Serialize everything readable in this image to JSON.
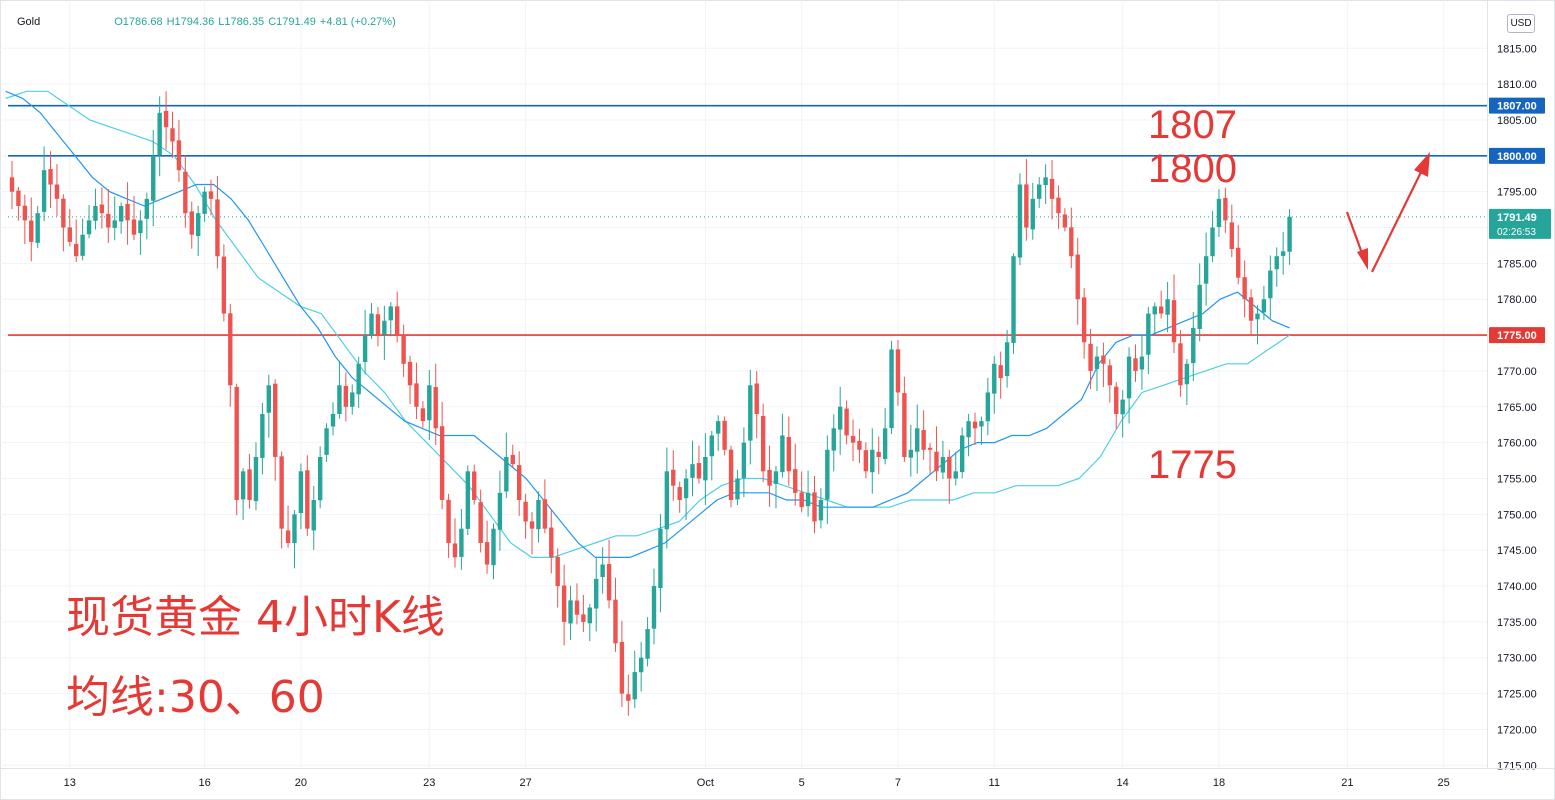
{
  "symbol": "Gold",
  "ohlc": {
    "open": "O1786.68",
    "high": "H1794.36",
    "low": "L1786.35",
    "close": "C1791.49",
    "change": "+4.81 (+0.27%)"
  },
  "currency": "USD",
  "last_price": {
    "price": "1791.49",
    "countdown": "02:26:53"
  },
  "horizontal_levels": [
    {
      "label": "1807.00",
      "value": 1807,
      "color": "#1565c0"
    },
    {
      "label": "1800.00",
      "value": 1800,
      "color": "#1565c0"
    },
    {
      "label": "1775.00",
      "value": 1775,
      "color": "#e53935"
    }
  ],
  "annotations": {
    "level_1807": "1807",
    "level_1800": "1800",
    "level_1775": "1775",
    "title_cn": "现货黄金 4小时K线",
    "ma_cn": "均线:30、60"
  },
  "colors": {
    "up": "#26a69a",
    "down": "#ef5350",
    "ma30": "#2196f3",
    "ma60": "#4dd0e1",
    "blue_line": "#1565c0",
    "red_line": "#e53935"
  },
  "chart_data": {
    "type": "candlestick",
    "title": "",
    "ylim": [
      1712,
      1819
    ],
    "y_ticks": [
      1815,
      1810,
      1805,
      1800,
      1795,
      1790,
      1785,
      1780,
      1775,
      1770,
      1765,
      1760,
      1755,
      1750,
      1745,
      1740,
      1735,
      1730,
      1725,
      1720,
      1715
    ],
    "x_ticks": [
      {
        "label": "13",
        "index": 9
      },
      {
        "label": "16",
        "index": 30
      },
      {
        "label": "20",
        "index": 45
      },
      {
        "label": "23",
        "index": 65
      },
      {
        "label": "27",
        "index": 80
      },
      {
        "label": "Oct",
        "index": 108
      },
      {
        "label": "5",
        "index": 123
      },
      {
        "label": "7",
        "index": 138
      },
      {
        "label": "11",
        "index": 153
      },
      {
        "label": "14",
        "index": 173
      },
      {
        "label": "18",
        "index": 188
      },
      {
        "label": "21",
        "index": 208
      },
      {
        "label": "25",
        "index": 223
      }
    ],
    "x_range": [
      -1,
      240
    ],
    "close_series": [
      1795,
      1793,
      1791,
      1788,
      1792,
      1798,
      1796,
      1794,
      1790,
      1788,
      1786,
      1789,
      1791,
      1793,
      1792,
      1790,
      1791,
      1793,
      1791,
      1789,
      1791,
      1794,
      1800,
      1806,
      1804,
      1802,
      1798,
      1792,
      1789,
      1792,
      1795,
      1794,
      1786,
      1778,
      1768,
      1752,
      1756,
      1752,
      1758,
      1764,
      1768,
      1758,
      1748,
      1746,
      1750,
      1756,
      1748,
      1752,
      1758,
      1762,
      1764,
      1768,
      1765,
      1767,
      1771,
      1775,
      1778,
      1775,
      1777,
      1779,
      1775,
      1771,
      1768,
      1765,
      1763,
      1768,
      1762,
      1752,
      1746,
      1744,
      1748,
      1756,
      1752,
      1746,
      1743,
      1748,
      1753,
      1758,
      1757,
      1752,
      1749,
      1748,
      1752,
      1748,
      1744,
      1740,
      1735,
      1738,
      1736,
      1735,
      1737,
      1741,
      1743,
      1738,
      1732,
      1725,
      1724,
      1728,
      1730,
      1734,
      1740,
      1748,
      1756,
      1754,
      1752,
      1755,
      1757,
      1755,
      1758,
      1761,
      1763,
      1759,
      1752,
      1755,
      1760,
      1768,
      1764,
      1756,
      1754,
      1756,
      1761,
      1756,
      1753,
      1751,
      1753,
      1749,
      1752,
      1759,
      1762,
      1765,
      1761,
      1760,
      1759,
      1756,
      1759,
      1758,
      1762,
      1773,
      1767,
      1758,
      1759,
      1762,
      1759,
      1759,
      1756,
      1758,
      1755,
      1756,
      1761,
      1763,
      1762,
      1763,
      1767,
      1771,
      1769,
      1774,
      1786,
      1796,
      1790,
      1794,
      1796,
      1797,
      1794,
      1792,
      1790,
      1786,
      1780,
      1774,
      1770,
      1772,
      1771,
      1768,
      1764,
      1766,
      1772,
      1770,
      1772,
      1778,
      1779,
      1778,
      1780,
      1774,
      1768,
      1771,
      1776,
      1782,
      1786,
      1790,
      1794,
      1791,
      1787,
      1783,
      1780,
      1777,
      1778,
      1780,
      1784,
      1786,
      1786.68,
      1791.49
    ],
    "ma30": [
      1809,
      1808,
      1806,
      1803,
      1800,
      1797,
      1795,
      1794,
      1793,
      1794,
      1795,
      1796,
      1796,
      1794,
      1791,
      1787,
      1783,
      1779,
      1776,
      1772,
      1769,
      1767,
      1765,
      1763,
      1762,
      1761,
      1761,
      1761,
      1759,
      1757,
      1755,
      1752,
      1749,
      1746,
      1744,
      1744,
      1744,
      1745,
      1746,
      1748,
      1750,
      1752,
      1753,
      1753,
      1753,
      1752,
      1752,
      1751,
      1751,
      1751,
      1751,
      1752,
      1753,
      1755,
      1757,
      1759,
      1760,
      1760,
      1761,
      1761,
      1762,
      1764,
      1766,
      1771,
      1774,
      1775,
      1775,
      1776,
      1777,
      1778,
      1780,
      1781,
      1779,
      1777,
      1776
    ],
    "ma60": [
      1808,
      1809,
      1809,
      1807,
      1805,
      1804,
      1803,
      1802,
      1800,
      1796,
      1791,
      1787,
      1783,
      1781,
      1779,
      1778,
      1774,
      1770,
      1767,
      1763,
      1760,
      1757,
      1754,
      1750,
      1746,
      1744,
      1744,
      1745,
      1746,
      1747,
      1747,
      1748,
      1749,
      1752,
      1754,
      1755,
      1755,
      1754,
      1753,
      1752,
      1751,
      1751,
      1751,
      1752,
      1752,
      1752,
      1753,
      1753,
      1754,
      1754,
      1754,
      1755,
      1758,
      1763,
      1767,
      1768,
      1769,
      1770,
      1771,
      1771,
      1773,
      1775
    ]
  }
}
